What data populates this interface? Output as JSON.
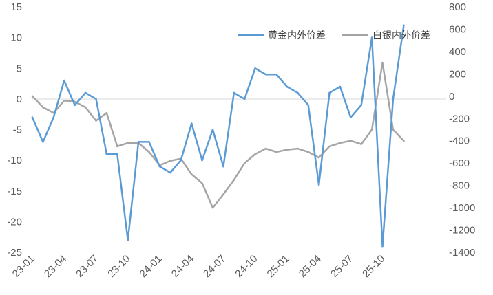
{
  "chart_data": {
    "type": "line",
    "title": "",
    "xlabel": "",
    "ylabel": "",
    "y2label": "",
    "grid": false,
    "legend_position": "top-right",
    "x_tick_labels": [
      "23-01",
      "23-04",
      "23-07",
      "23-10",
      "24-01",
      "24-04",
      "24-07",
      "24-10",
      "25-01",
      "25-04",
      "25-07",
      "25-10"
    ],
    "ylim_left": [
      -25,
      15
    ],
    "yticks_left": [
      "15",
      "10",
      "5",
      "0",
      "-5",
      "-10",
      "-15",
      "-20",
      "-25"
    ],
    "ylim_right": [
      -1400,
      800
    ],
    "yticks_right": [
      "800",
      "600",
      "400",
      "200",
      "0",
      "-200",
      "-400",
      "-600",
      "-800",
      "-1000",
      "-1200",
      "-1400"
    ],
    "zero_line": true,
    "series": [
      {
        "name": "黄金内外价差",
        "axis": "left",
        "color": "#5B9BD5",
        "points": [
          [
            "23-01",
            -3
          ],
          [
            "23-02",
            -7
          ],
          [
            "23-03",
            -3
          ],
          [
            "23-04",
            3
          ],
          [
            "23-05",
            -1
          ],
          [
            "23-06",
            1
          ],
          [
            "23-07",
            0
          ],
          [
            "23-08",
            -9
          ],
          [
            "23-09",
            -9
          ],
          [
            "23-10",
            -23
          ],
          [
            "23-11",
            -7
          ],
          [
            "23-12",
            -7
          ],
          [
            "24-01",
            -11
          ],
          [
            "24-02",
            -12
          ],
          [
            "24-03",
            -10
          ],
          [
            "24-04",
            -4
          ],
          [
            "24-05",
            -10
          ],
          [
            "24-06",
            -5
          ],
          [
            "24-07",
            -11
          ],
          [
            "24-08",
            1
          ],
          [
            "24-09",
            0
          ],
          [
            "24-10",
            5
          ],
          [
            "24-11",
            4
          ],
          [
            "24-12",
            4
          ],
          [
            "25-01",
            2
          ],
          [
            "25-02",
            1
          ],
          [
            "25-03",
            -1
          ],
          [
            "25-04",
            -14
          ],
          [
            "25-05",
            1
          ],
          [
            "25-06",
            2
          ],
          [
            "25-07",
            -3
          ],
          [
            "25-08",
            -1
          ],
          [
            "25-09",
            10
          ],
          [
            "25-10",
            -24
          ],
          [
            "25-11",
            0
          ],
          [
            "25-12",
            12
          ]
        ]
      },
      {
        "name": "白银内外价差",
        "axis": "right",
        "color": "#A5A5A5",
        "points": [
          [
            "23-01",
            0
          ],
          [
            "23-02",
            -100
          ],
          [
            "23-03",
            -150
          ],
          [
            "23-04",
            -40
          ],
          [
            "23-05",
            -50
          ],
          [
            "23-06",
            -100
          ],
          [
            "23-07",
            -220
          ],
          [
            "23-08",
            -150
          ],
          [
            "23-09",
            -450
          ],
          [
            "23-10",
            -420
          ],
          [
            "23-11",
            -420
          ],
          [
            "23-12",
            -500
          ],
          [
            "24-01",
            -620
          ],
          [
            "24-02",
            -580
          ],
          [
            "24-03",
            -560
          ],
          [
            "24-04",
            -700
          ],
          [
            "24-05",
            -780
          ],
          [
            "24-06",
            -1000
          ],
          [
            "24-07",
            -880
          ],
          [
            "24-08",
            -750
          ],
          [
            "24-09",
            -600
          ],
          [
            "24-10",
            -520
          ],
          [
            "24-11",
            -470
          ],
          [
            "24-12",
            -500
          ],
          [
            "25-01",
            -480
          ],
          [
            "25-02",
            -470
          ],
          [
            "25-03",
            -500
          ],
          [
            "25-04",
            -550
          ],
          [
            "25-05",
            -450
          ],
          [
            "25-06",
            -420
          ],
          [
            "25-07",
            -400
          ],
          [
            "25-08",
            -430
          ],
          [
            "25-09",
            -300
          ],
          [
            "25-10",
            300
          ],
          [
            "25-11",
            -300
          ],
          [
            "25-12",
            -400
          ]
        ]
      }
    ]
  }
}
